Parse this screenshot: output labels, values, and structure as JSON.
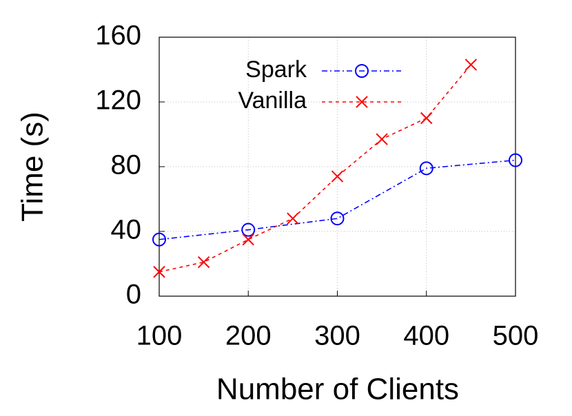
{
  "chart_data": {
    "type": "line",
    "x_label": "Number of Clients",
    "y_label": "Time (s)",
    "xlim": [
      100,
      500
    ],
    "xticks": [
      100,
      200,
      300,
      400,
      500
    ],
    "ylim": [
      0,
      160
    ],
    "yticks": [
      0,
      40,
      80,
      120,
      160
    ],
    "grid": true,
    "legend": "top",
    "series": [
      {
        "name": "Spark",
        "color": "#0000ff",
        "marker": "circle",
        "dash": "dash-dot",
        "x": [
          100,
          200,
          300,
          400,
          500
        ],
        "values": [
          35,
          41,
          48,
          79,
          84
        ]
      },
      {
        "name": "Vanilla",
        "color": "#ff0000",
        "marker": "cross",
        "dash": "dashed",
        "x": [
          100,
          150,
          200,
          250,
          300,
          350,
          400,
          450
        ],
        "values": [
          15,
          21,
          35,
          48,
          74,
          97,
          110,
          143
        ]
      }
    ]
  }
}
